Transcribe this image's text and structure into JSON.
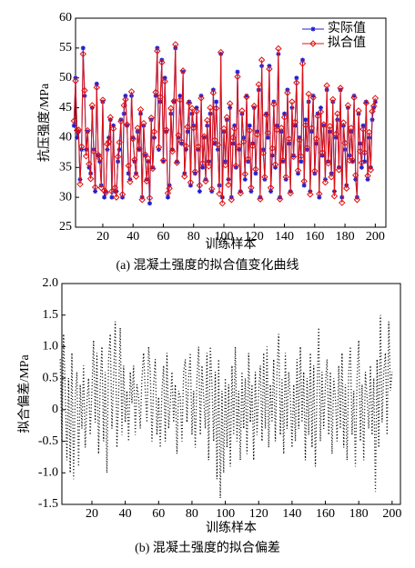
{
  "chart_data": [
    {
      "type": "line",
      "caption": "(a) 混凝土强度的拟合值变化曲线",
      "xlabel": "训练样本",
      "ylabel": "抗压强度/MPa",
      "xlim": [
        2,
        207
      ],
      "xticks": [
        20,
        40,
        60,
        80,
        100,
        120,
        140,
        160,
        180,
        200
      ],
      "ylim": [
        25,
        60
      ],
      "yticks": [
        25,
        30,
        35,
        40,
        45,
        50,
        55,
        60
      ],
      "legend": "upper right",
      "x": [
        1,
        2,
        3,
        4,
        5,
        6,
        7,
        8,
        9,
        10,
        11,
        12,
        13,
        14,
        15,
        16,
        17,
        18,
        19,
        20,
        21,
        22,
        23,
        24,
        25,
        26,
        27,
        28,
        29,
        30,
        31,
        32,
        33,
        34,
        35,
        36,
        37,
        38,
        39,
        40,
        41,
        42,
        43,
        44,
        45,
        46,
        47,
        48,
        49,
        50,
        51,
        52,
        53,
        54,
        55,
        56,
        57,
        58,
        59,
        60,
        61,
        62,
        63,
        64,
        65,
        66,
        67,
        68,
        69,
        70,
        71,
        72,
        73,
        74,
        75,
        76,
        77,
        78,
        79,
        80,
        81,
        82,
        83,
        84,
        85,
        86,
        87,
        88,
        89,
        90,
        91,
        92,
        93,
        94,
        95,
        96,
        97,
        98,
        99,
        100,
        101,
        102,
        103,
        104,
        105,
        106,
        107,
        108,
        109,
        110,
        111,
        112,
        113,
        114,
        115,
        116,
        117,
        118,
        119,
        120,
        121,
        122,
        123,
        124,
        125,
        126,
        127,
        128,
        129,
        130,
        131,
        132,
        133,
        134,
        135,
        136,
        137,
        138,
        139,
        140,
        141,
        142,
        143,
        144,
        145,
        146,
        147,
        148,
        149,
        150,
        151,
        152,
        153,
        154,
        155,
        156,
        157,
        158,
        159,
        160,
        161,
        162,
        163,
        164,
        165,
        166,
        167,
        168,
        169,
        170,
        171,
        172,
        173,
        174,
        175,
        176,
        177,
        178,
        179,
        180,
        181,
        182,
        183,
        184,
        185,
        186,
        187,
        188,
        189,
        190,
        191,
        192,
        193,
        194,
        195,
        196,
        197,
        198,
        199,
        200
      ],
      "series": [
        {
          "name": "实际值",
          "color": "#1f1fd0",
          "marker": "star",
          "values": [
            42,
            50,
            40,
            41,
            33,
            38,
            55,
            47,
            38,
            41,
            35,
            34,
            45,
            38,
            31,
            49,
            37,
            36,
            32,
            46,
            30,
            31,
            38,
            40,
            43,
            30,
            42,
            31,
            31,
            36,
            38,
            43,
            30,
            44,
            47,
            42,
            34,
            33,
            47,
            40,
            36,
            34,
            41,
            38,
            44,
            30,
            42,
            37,
            33,
            36,
            29,
            43,
            35,
            40,
            47,
            55,
            38,
            46,
            53,
            36,
            50,
            41,
            30,
            32,
            44,
            38,
            46,
            55,
            36,
            40,
            47,
            39,
            51,
            34,
            38,
            41,
            46,
            32,
            44,
            42,
            34,
            45,
            38,
            31,
            47,
            35,
            40,
            33,
            42,
            36,
            44,
            31,
            48,
            39,
            46,
            38,
            32,
            54,
            30,
            41,
            36,
            43,
            33,
            45,
            30,
            39,
            42,
            35,
            51,
            38,
            31,
            44,
            40,
            33,
            47,
            36,
            42,
            31,
            39,
            45,
            34,
            41,
            48,
            30,
            52,
            38,
            33,
            44,
            40,
            52,
            31,
            37,
            46,
            35,
            42,
            54,
            30,
            41,
            36,
            44,
            33,
            48,
            39,
            31,
            45,
            37,
            42,
            50,
            34,
            40,
            36,
            53,
            32,
            43,
            38,
            46,
            31,
            41,
            47,
            34,
            39,
            44,
            30,
            45,
            37,
            42,
            33,
            48,
            36,
            41,
            34,
            46,
            31,
            40,
            43,
            35,
            48,
            30,
            42,
            38,
            32,
            45,
            37,
            41,
            36,
            47,
            33,
            30,
            44,
            39,
            35,
            42,
            36,
            46,
            33,
            40,
            35,
            43,
            45,
            46
          ]
        },
        {
          "name": "拟合值",
          "color": "#e01010",
          "marker": "diamond",
          "values": [
            42.8,
            49.5,
            41.2,
            41.3,
            32.2,
            38.5,
            54.0,
            47.9,
            36.9,
            41.2,
            35.6,
            33.1,
            45.4,
            37.7,
            31.7,
            48.4,
            37.1,
            36.5,
            31.6,
            46.3,
            31.1,
            30.8,
            38.9,
            39.3,
            43.4,
            31.0,
            41.5,
            31.6,
            30.0,
            36.8,
            39.2,
            42.7,
            30.5,
            45.4,
            46.4,
            42.2,
            35.3,
            32.6,
            47.7,
            39.8,
            36.3,
            33.5,
            41.6,
            38.1,
            44.7,
            29.6,
            42.4,
            37.2,
            32.7,
            36.5,
            29.9,
            43.3,
            34.8,
            41.0,
            47.6,
            54.5,
            38.4,
            46.8,
            52.6,
            36.2,
            49.4,
            41.3,
            30.7,
            31.5,
            44.9,
            37.7,
            46.1,
            55.6,
            35.8,
            40.4,
            46.3,
            39.3,
            51.2,
            33.5,
            38.6,
            41.8,
            45.8,
            32.5,
            44.9,
            41.6,
            34.3,
            44.4,
            38.5,
            32.0,
            46.6,
            35.7,
            40.2,
            32.7,
            42.9,
            35.2,
            45.0,
            31.4,
            47.5,
            39.6,
            44.9,
            38.8,
            30.6,
            54.3,
            29.0,
            41.5,
            35.4,
            43.4,
            32.1,
            45.7,
            29.6,
            40.0,
            41.5,
            35.3,
            50.2,
            38.6,
            30.7,
            44.5,
            39.3,
            33.9,
            46.8,
            36.4,
            41.2,
            31.6,
            38.6,
            45.3,
            34.7,
            40.5,
            48.9,
            29.7,
            53.0,
            37.4,
            33.4,
            43.8,
            40.8,
            51.5,
            31.6,
            38.2,
            45.6,
            35.5,
            41.3,
            54.9,
            29.7,
            41.6,
            36.2,
            43.4,
            33.4,
            47.5,
            39.8,
            30.7,
            46.0,
            36.8,
            42.6,
            49.2,
            34.5,
            39.6,
            36.9,
            52.4,
            32.7,
            42.1,
            38.3,
            47.3,
            30.5,
            41.6,
            46.7,
            34.4,
            39.8,
            43.6,
            30.6,
            44.3,
            37.5,
            42.2,
            32.5,
            48.7,
            35.7,
            41.9,
            33.4,
            46.4,
            30.2,
            40.6,
            44.0,
            34.6,
            48.3,
            29.1,
            42.5,
            39.1,
            31.5,
            45.4,
            36.2,
            41.6,
            36.2,
            46.7,
            33.7,
            29.6,
            44.5,
            37.7,
            35.8,
            41.4,
            37.5,
            45.8,
            33.6,
            40.9,
            34.6,
            44.4,
            45.3,
            46.6
          ]
        }
      ]
    },
    {
      "type": "line",
      "caption": "(b) 混凝土强度的拟合偏差",
      "xlabel": "训练样本",
      "ylabel": "拟合偏差/MPa",
      "xlim": [
        2,
        205
      ],
      "xticks": [
        20,
        40,
        60,
        80,
        100,
        120,
        140,
        160,
        180,
        200
      ],
      "ylim": [
        -1.5,
        2
      ],
      "yticks": [
        {
          "value": 2,
          "label": "2.0"
        },
        1.5,
        {
          "value": 1,
          "label": "1.0"
        },
        0.5,
        0,
        -0.5,
        {
          "value": -1,
          "label": "-1.0"
        },
        -1.5
      ],
      "x": [
        1,
        2,
        3,
        4,
        5,
        6,
        7,
        8,
        9,
        10,
        11,
        12,
        13,
        14,
        15,
        16,
        17,
        18,
        19,
        20,
        21,
        22,
        23,
        24,
        25,
        26,
        27,
        28,
        29,
        30,
        31,
        32,
        33,
        34,
        35,
        36,
        37,
        38,
        39,
        40,
        41,
        42,
        43,
        44,
        45,
        46,
        47,
        48,
        49,
        50,
        51,
        52,
        53,
        54,
        55,
        56,
        57,
        58,
        59,
        60,
        61,
        62,
        63,
        64,
        65,
        66,
        67,
        68,
        69,
        70,
        71,
        72,
        73,
        74,
        75,
        76,
        77,
        78,
        79,
        80,
        81,
        82,
        83,
        84,
        85,
        86,
        87,
        88,
        89,
        90,
        91,
        92,
        93,
        94,
        95,
        96,
        97,
        98,
        99,
        100,
        101,
        102,
        103,
        104,
        105,
        106,
        107,
        108,
        109,
        110,
        111,
        112,
        113,
        114,
        115,
        116,
        117,
        118,
        119,
        120,
        121,
        122,
        123,
        124,
        125,
        126,
        127,
        128,
        129,
        130,
        131,
        132,
        133,
        134,
        135,
        136,
        137,
        138,
        139,
        140,
        141,
        142,
        143,
        144,
        145,
        146,
        147,
        148,
        149,
        150,
        151,
        152,
        153,
        154,
        155,
        156,
        157,
        158,
        159,
        160,
        161,
        162,
        163,
        164,
        165,
        166,
        167,
        168,
        169,
        170,
        171,
        172,
        173,
        174,
        175,
        176,
        177,
        178,
        179,
        180,
        181,
        182,
        183,
        184,
        185,
        186,
        187,
        188,
        189,
        190,
        191,
        192,
        193,
        194,
        195,
        196,
        197,
        198,
        199,
        200
      ],
      "series": [
        {
          "color": "#000000",
          "style": "dotted",
          "values": [
            0.8,
            -0.5,
            1.2,
            0.3,
            -0.8,
            0.5,
            -1.0,
            0.9,
            -1.1,
            0.2,
            0.6,
            -0.9,
            0.4,
            -0.3,
            0.7,
            -0.6,
            0.1,
            0.5,
            -0.4,
            0.3,
            1.1,
            -0.2,
            0.9,
            -0.7,
            0.4,
            1.0,
            -0.5,
            0.6,
            -1.0,
            0.8,
            1.2,
            -0.3,
            0.5,
            1.4,
            -0.6,
            0.2,
            1.3,
            -0.4,
            0.7,
            -0.2,
            0.3,
            -0.5,
            0.6,
            0.1,
            0.7,
            -0.4,
            0.4,
            0.2,
            -0.3,
            0.5,
            0.9,
            0.3,
            -0.2,
            1.0,
            0.6,
            -0.5,
            0.4,
            0.8,
            -0.4,
            0.2,
            -0.6,
            0.3,
            0.7,
            -0.5,
            0.9,
            -0.3,
            0.1,
            0.6,
            -0.2,
            0.4,
            -0.7,
            0.3,
            0.2,
            -0.5,
            0.6,
            0.8,
            -0.2,
            0.5,
            0.9,
            -0.4,
            0.3,
            -0.6,
            0.5,
            1.0,
            -0.4,
            0.7,
            0.2,
            -0.3,
            0.9,
            -0.8,
            1.0,
            0.4,
            -0.5,
            0.6,
            -1.1,
            0.8,
            -1.4,
            0.3,
            -1.0,
            0.5,
            -0.6,
            0.4,
            -0.9,
            0.7,
            -0.4,
            1.0,
            -0.5,
            0.3,
            -0.8,
            0.6,
            -0.3,
            0.5,
            -0.7,
            0.9,
            -0.2,
            0.4,
            -0.8,
            0.6,
            -0.4,
            0.3,
            0.7,
            -0.5,
            0.9,
            -0.3,
            1.0,
            -0.6,
            0.4,
            -0.2,
            0.8,
            -0.5,
            0.6,
            1.2,
            -0.4,
            0.5,
            -0.7,
            0.9,
            -0.3,
            0.6,
            0.2,
            -0.6,
            0.4,
            -0.5,
            0.8,
            -0.3,
            1.0,
            -0.2,
            0.6,
            -0.8,
            0.5,
            -0.4,
            0.9,
            -0.6,
            0.7,
            -0.9,
            0.3,
            1.3,
            -0.5,
            0.6,
            -0.3,
            0.4,
            0.8,
            -0.4,
            0.6,
            -0.7,
            0.5,
            0.2,
            -0.5,
            0.7,
            -0.3,
            0.9,
            -0.6,
            0.4,
            -0.8,
            0.6,
            1.0,
            -0.4,
            0.3,
            -0.9,
            0.5,
            1.1,
            -0.5,
            0.4,
            -0.8,
            0.6,
            0.2,
            -0.3,
            0.7,
            -0.4,
            0.5,
            -1.3,
            0.8,
            -0.6,
            1.5,
            -0.2,
            0.6,
            0.9,
            -0.4,
            1.4,
            0.3,
            0.6
          ]
        }
      ]
    }
  ]
}
